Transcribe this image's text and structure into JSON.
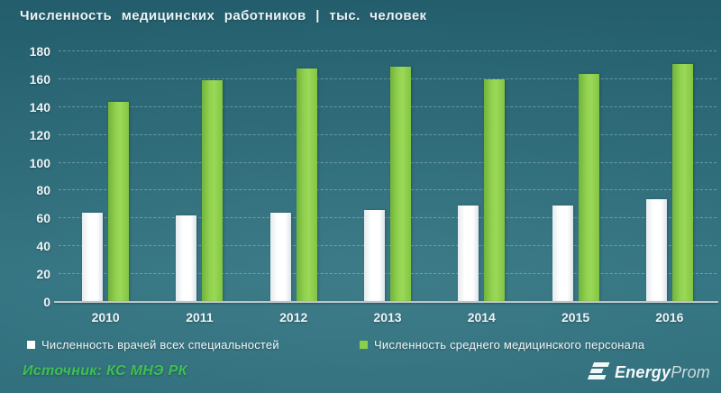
{
  "title": "Численность медицинских работников | тыс. человек",
  "chart_data": {
    "type": "bar",
    "categories": [
      "2010",
      "2011",
      "2012",
      "2013",
      "2014",
      "2015",
      "2016"
    ],
    "series": [
      {
        "name": "Численность врачей всех специальностей",
        "color": "#ffffff",
        "values": [
          64,
          62,
          64,
          66,
          69,
          69,
          74
        ]
      },
      {
        "name": "Численность среднего медицинского персонала",
        "color": "#8dce49",
        "values": [
          144,
          159,
          168,
          169,
          160,
          164,
          171
        ]
      }
    ],
    "title": "Численность медицинских работников",
    "unit_label": "тыс. человек",
    "xlabel": "",
    "ylabel": "",
    "ylim": [
      0,
      180
    ],
    "yticks": [
      0,
      20,
      40,
      60,
      80,
      100,
      120,
      140,
      160,
      180
    ],
    "grid": "horizontal-dashed",
    "legend_position": "bottom"
  },
  "footer": {
    "source": "Источник: КС МНЭ РК",
    "brand": {
      "bold": "Energy",
      "light": "Prom"
    }
  }
}
